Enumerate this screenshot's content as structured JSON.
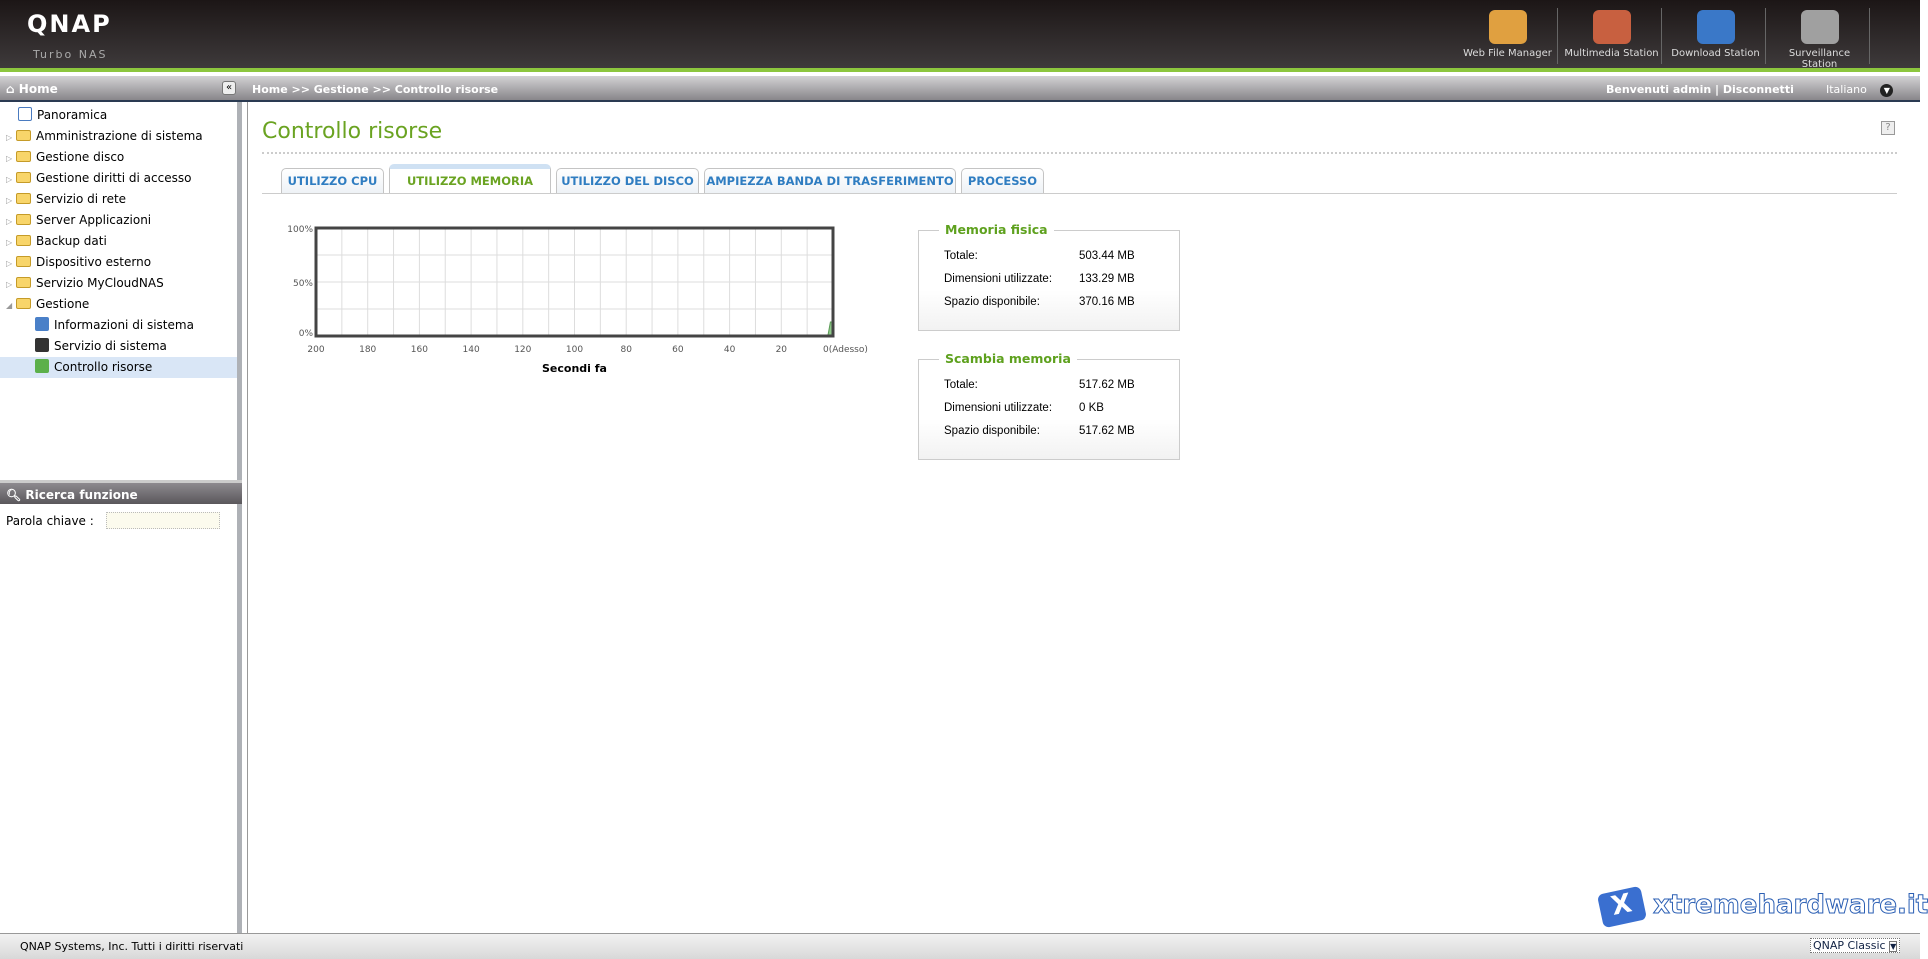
{
  "header": {
    "logo": "QNAP",
    "sublogo": "Turbo NAS",
    "apps": [
      {
        "label": "Web File Manager",
        "icon": "folder-magnifier-icon",
        "color": "#e0a040"
      },
      {
        "label": "Multimedia Station",
        "icon": "media-clapper-icon",
        "color": "#c86040"
      },
      {
        "label": "Download Station",
        "icon": "globe-download-icon",
        "color": "#3a78c8"
      },
      {
        "label": "Surveillance Station",
        "icon": "camera-dome-icon",
        "color": "#a0a0a0"
      }
    ]
  },
  "subbar": {
    "home": "Home",
    "breadcrumb": "Home >> Gestione >> Controllo risorse",
    "welcome": "Benvenuti admin",
    "separator": "|",
    "logout": "Disconnetti",
    "language": "Italiano"
  },
  "sidebar": {
    "items": [
      {
        "label": "Panoramica"
      },
      {
        "label": "Amministrazione di sistema"
      },
      {
        "label": "Gestione disco"
      },
      {
        "label": "Gestione diritti di accesso"
      },
      {
        "label": "Servizio di rete"
      },
      {
        "label": "Server Applicazioni"
      },
      {
        "label": "Backup dati"
      },
      {
        "label": "Dispositivo esterno"
      },
      {
        "label": "Servizio MyCloudNAS"
      },
      {
        "label": "Gestione"
      },
      {
        "label": "Informazioni di sistema"
      },
      {
        "label": "Servizio di sistema"
      },
      {
        "label": "Controllo risorse"
      }
    ],
    "search_title": "Ricerca funzione",
    "keyword_label": "Parola chiave :",
    "keyword_value": ""
  },
  "main": {
    "title": "Controllo risorse",
    "tabs": [
      {
        "label": "UTILIZZO CPU"
      },
      {
        "label": "UTILIZZO MEMORIA"
      },
      {
        "label": "UTILIZZO DEL DISCO"
      },
      {
        "label": "AMPIEZZA BANDA DI TRASFERIMENTO"
      },
      {
        "label": "PROCESSO"
      }
    ],
    "physical": {
      "title": "Memoria fisica",
      "rows": [
        {
          "k": "Totale:",
          "v": "503.44 MB"
        },
        {
          "k": "Dimensioni utilizzate:",
          "v": "133.29 MB"
        },
        {
          "k": "Spazio disponibile:",
          "v": "370.16 MB"
        }
      ]
    },
    "swap": {
      "title": "Scambia memoria",
      "rows": [
        {
          "k": "Totale:",
          "v": "517.62 MB"
        },
        {
          "k": "Dimensioni utilizzate:",
          "v": "0 KB"
        },
        {
          "k": "Spazio disponibile:",
          "v": "517.62 MB"
        }
      ]
    }
  },
  "chart_data": {
    "type": "area",
    "xlabel": "Secondi fa",
    "xlim": [
      200,
      0
    ],
    "ylim": [
      0,
      100
    ],
    "xticks": [
      "200",
      "180",
      "160",
      "140",
      "120",
      "100",
      "80",
      "60",
      "40",
      "20",
      "0(Adesso)"
    ],
    "yticks": [
      "100%",
      "50%",
      "0%"
    ],
    "grid": true,
    "color": "#8fc98a",
    "points": [
      {
        "x": 2,
        "y": 0
      },
      {
        "x": 1,
        "y": 13
      },
      {
        "x": 0,
        "y": 13
      }
    ]
  },
  "footer": {
    "copyright": "QNAP Systems, Inc. Tutti i diritti riservati",
    "theme": "QNAP Classic",
    "watermark": "xtremehardware.it"
  }
}
